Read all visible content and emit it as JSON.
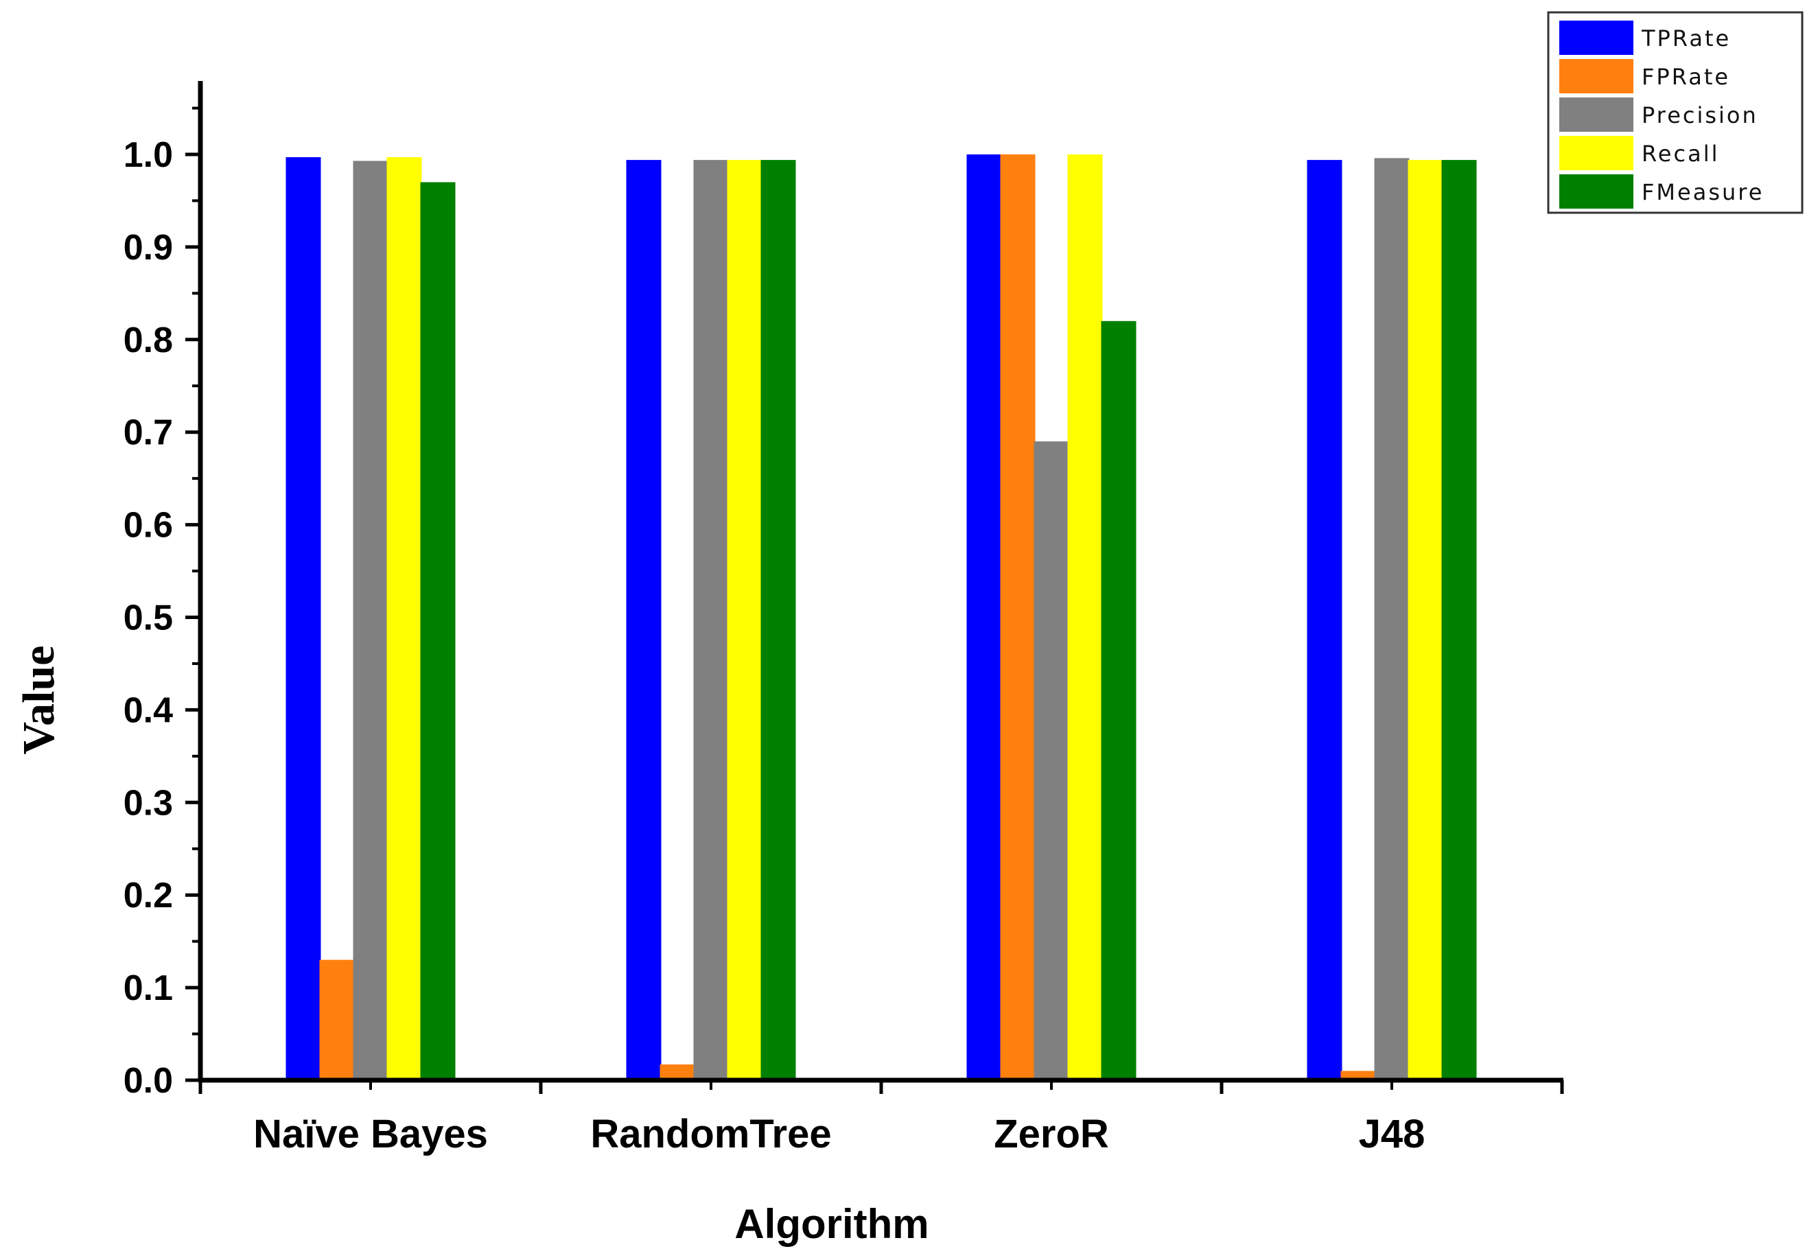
{
  "chart_data": {
    "type": "bar",
    "title": "",
    "xlabel": "Algorithm",
    "ylabel": "Value",
    "ylim": [
      0,
      1.08
    ],
    "yticks": [
      "0.0",
      "0.1",
      "0.2",
      "0.3",
      "0.4",
      "0.5",
      "0.6",
      "0.7",
      "0.8",
      "0.9",
      "1.0"
    ],
    "categories": [
      "Naïve Bayes",
      "RandomTree",
      "ZeroR",
      "J48"
    ],
    "series": [
      {
        "name": "TPRate",
        "color": "#0000ff",
        "values": [
          0.997,
          0.994,
          1.0,
          0.994
        ]
      },
      {
        "name": "FPRate",
        "color": "#ff7f0f",
        "values": [
          0.13,
          0.017,
          1.0,
          0.01
        ]
      },
      {
        "name": "Precision",
        "color": "#808080",
        "values": [
          0.993,
          0.994,
          0.69,
          0.996
        ]
      },
      {
        "name": "Recall",
        "color": "#ffff00",
        "values": [
          0.997,
          0.994,
          1.0,
          0.994
        ]
      },
      {
        "name": "FMeasure",
        "color": "#008000",
        "values": [
          0.97,
          0.994,
          0.82,
          0.994
        ]
      }
    ],
    "grid": false,
    "legend": "top-right"
  }
}
